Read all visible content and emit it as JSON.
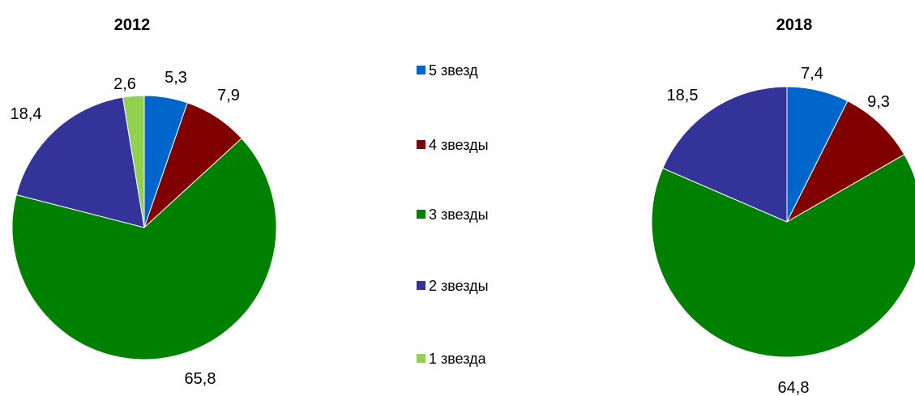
{
  "chart_data": [
    {
      "type": "pie",
      "title": "2012",
      "series": [
        {
          "name": "5 звезд",
          "value": 5.3,
          "label": "5,3"
        },
        {
          "name": "4 звезды",
          "value": 7.9,
          "label": "7,9"
        },
        {
          "name": "3 звезды",
          "value": 65.8,
          "label": "65,8"
        },
        {
          "name": "2 звезды",
          "value": 18.4,
          "label": "18,4"
        },
        {
          "name": "1 звезда",
          "value": 2.6,
          "label": "2,6"
        }
      ]
    },
    {
      "type": "pie",
      "title": "2018",
      "series": [
        {
          "name": "5 звезд",
          "value": 7.4,
          "label": "7,4"
        },
        {
          "name": "4 звезды",
          "value": 9.3,
          "label": "9,3"
        },
        {
          "name": "3 звезды",
          "value": 64.8,
          "label": "64,8"
        },
        {
          "name": "2 звезды",
          "value": 18.5,
          "label": "18,5"
        }
      ]
    }
  ],
  "legend": {
    "items": [
      {
        "label": "5 звезд",
        "color": "#0066cc"
      },
      {
        "label": "4 звезды",
        "color": "#800000"
      },
      {
        "label": "3 звезды",
        "color": "#008000"
      },
      {
        "label": "2 звезды",
        "color": "#333399"
      },
      {
        "label": "1 звезда",
        "color": "#92d050"
      }
    ]
  }
}
